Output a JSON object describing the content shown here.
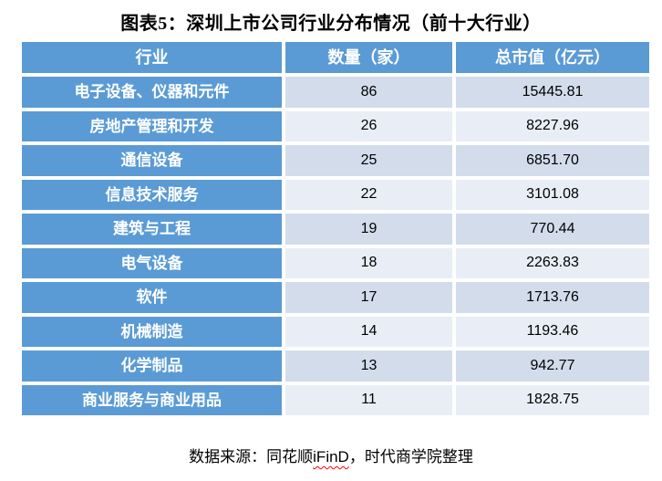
{
  "title": "图表5：深圳上市公司行业分布情况（前十大行业）",
  "colors": {
    "header_blue": "#5B9BD5",
    "band_dark": "#D2DCEB",
    "band_light": "#E9EEF6",
    "cell_border": "#FFFFFF",
    "header_text": "#FFFFFF",
    "body_text": "#000000",
    "spellcheck_squiggle": "#FF0000"
  },
  "table": {
    "columns": [
      "行业",
      "数量（家）",
      "总市值（亿元）"
    ],
    "rows": [
      {
        "industry": "电子设备、仪器和元件",
        "count": "86",
        "market_cap": "15445.81"
      },
      {
        "industry": "房地产管理和开发",
        "count": "26",
        "market_cap": "8227.96"
      },
      {
        "industry": "通信设备",
        "count": "25",
        "market_cap": "6851.70"
      },
      {
        "industry": "信息技术服务",
        "count": "22",
        "market_cap": "3101.08"
      },
      {
        "industry": "建筑与工程",
        "count": "19",
        "market_cap": "770.44"
      },
      {
        "industry": "电气设备",
        "count": "18",
        "market_cap": "2263.83"
      },
      {
        "industry": "软件",
        "count": "17",
        "market_cap": "1713.76"
      },
      {
        "industry": "机械制造",
        "count": "14",
        "market_cap": "1193.46"
      },
      {
        "industry": "化学制品",
        "count": "13",
        "market_cap": "942.77"
      },
      {
        "industry": "商业服务与商业用品",
        "count": "11",
        "market_cap": "1828.75"
      }
    ]
  },
  "footer": {
    "prefix": "数据来源：同花顺",
    "highlight": "iFinD",
    "suffix": "，时代商学院整理"
  },
  "chart_data": {
    "type": "table",
    "title": "图表5：深圳上市公司行业分布情况（前十大行业）",
    "columns": [
      "行业",
      "数量（家）",
      "总市值（亿元）"
    ],
    "rows": [
      [
        "电子设备、仪器和元件",
        86,
        15445.81
      ],
      [
        "房地产管理和开发",
        26,
        8227.96
      ],
      [
        "通信设备",
        25,
        6851.7
      ],
      [
        "信息技术服务",
        22,
        3101.08
      ],
      [
        "建筑与工程",
        19,
        770.44
      ],
      [
        "电气设备",
        18,
        2263.83
      ],
      [
        "软件",
        17,
        1713.76
      ],
      [
        "机械制造",
        14,
        1193.46
      ],
      [
        "化学制品",
        13,
        942.77
      ],
      [
        "商业服务与商业用品",
        11,
        1828.75
      ]
    ],
    "source": "数据来源：同花顺iFinD，时代商学院整理"
  }
}
